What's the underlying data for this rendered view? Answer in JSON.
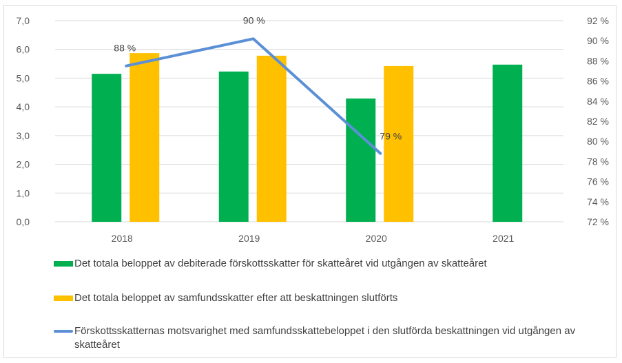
{
  "chart_data": {
    "type": "bar",
    "categories": [
      "2018",
      "2019",
      "2020",
      "2021"
    ],
    "y_left": {
      "ylim": [
        0,
        7
      ],
      "ticks": [
        "0,0",
        "1,0",
        "2,0",
        "3,0",
        "4,0",
        "5,0",
        "6,0",
        "7,0"
      ]
    },
    "y_right": {
      "ylim": [
        72,
        92
      ],
      "ticks": [
        "72 %",
        "74 %",
        "76 %",
        "78 %",
        "80 %",
        "82 %",
        "84 %",
        "86 %",
        "88 %",
        "90 %",
        "92 %"
      ]
    },
    "grid": true,
    "series": [
      {
        "name": "Det totala beloppet av debiterade förskottsskatter för skatteåret vid utgången av skatteåret",
        "type": "bar",
        "axis": "left",
        "color": "#00b050",
        "values": [
          5.15,
          5.23,
          4.29,
          5.47
        ]
      },
      {
        "name": "Det totala beloppet av samfundsskatter efter att beskattningen slutförts",
        "type": "bar",
        "axis": "left",
        "color": "#ffc000",
        "values": [
          5.87,
          5.78,
          5.42,
          null
        ]
      },
      {
        "name": "Förskottsskatternas motsvarighet med samfundsskattebeloppet i den slutförda beskattningen vid utgången av skatteåret",
        "type": "line",
        "axis": "right",
        "color": "#5b8fd6",
        "values": [
          87.5,
          90.2,
          78.8,
          null
        ],
        "data_labels": [
          "88 %",
          "90 %",
          "79 %",
          null
        ]
      }
    ],
    "legend_position": "bottom"
  }
}
